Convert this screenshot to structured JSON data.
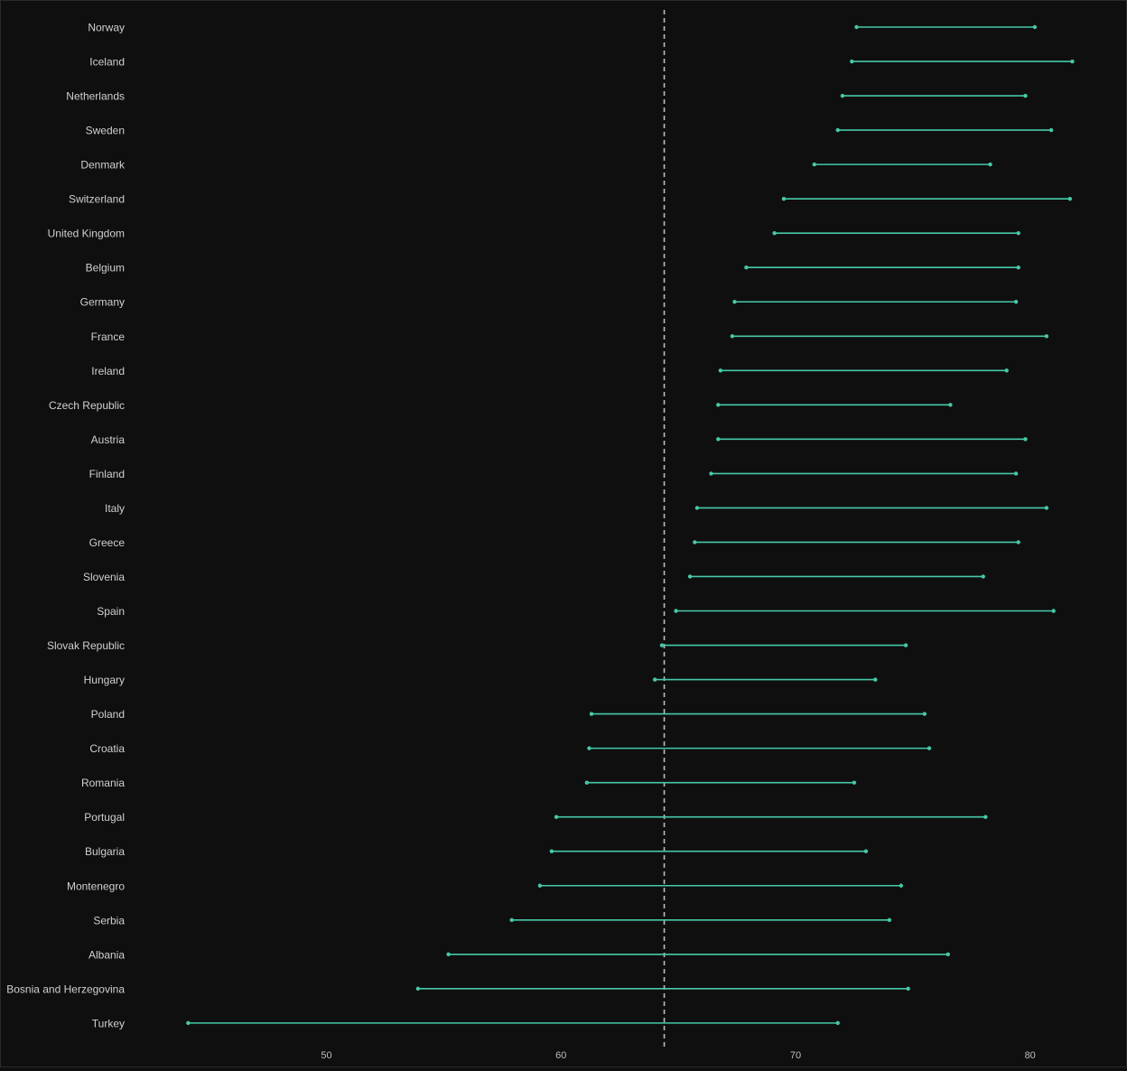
{
  "chart_data": {
    "type": "dumbbell",
    "title": "",
    "xlabel": "",
    "ylabel": "",
    "xlim": [
      41.7,
      83.4
    ],
    "xticks": [
      50,
      60,
      70,
      80
    ],
    "xtick_labels": [
      "50",
      "60",
      "70",
      "80"
    ],
    "reference_line": 64.4,
    "grid": false,
    "colors": {
      "segment": "#46c9a8",
      "point": "#46c9a8",
      "reference_line": "#bdbdbd",
      "label": "#d0d0d0",
      "tick_label": "#bdbdbd",
      "background": "#0f0f0f"
    },
    "rows": [
      {
        "label": "Norway",
        "start": 72.6,
        "end": 80.2
      },
      {
        "label": "Iceland",
        "start": 72.4,
        "end": 81.8
      },
      {
        "label": "Netherlands",
        "start": 72.0,
        "end": 79.8
      },
      {
        "label": "Sweden",
        "start": 71.8,
        "end": 80.9
      },
      {
        "label": "Denmark",
        "start": 70.8,
        "end": 78.3
      },
      {
        "label": "Switzerland",
        "start": 69.5,
        "end": 81.7
      },
      {
        "label": "United Kingdom",
        "start": 69.1,
        "end": 79.5
      },
      {
        "label": "Belgium",
        "start": 67.9,
        "end": 79.5
      },
      {
        "label": "Germany",
        "start": 67.4,
        "end": 79.4
      },
      {
        "label": "France",
        "start": 67.3,
        "end": 80.7
      },
      {
        "label": "Ireland",
        "start": 66.8,
        "end": 79.0
      },
      {
        "label": "Czech Republic",
        "start": 66.7,
        "end": 76.6
      },
      {
        "label": "Austria",
        "start": 66.7,
        "end": 79.8
      },
      {
        "label": "Finland",
        "start": 66.4,
        "end": 79.4
      },
      {
        "label": "Italy",
        "start": 65.8,
        "end": 80.7
      },
      {
        "label": "Greece",
        "start": 65.7,
        "end": 79.5
      },
      {
        "label": "Slovenia",
        "start": 65.5,
        "end": 78.0
      },
      {
        "label": "Spain",
        "start": 64.9,
        "end": 81.0
      },
      {
        "label": "Slovak Republic",
        "start": 64.3,
        "end": 74.7
      },
      {
        "label": "Hungary",
        "start": 64.0,
        "end": 73.4
      },
      {
        "label": "Poland",
        "start": 61.3,
        "end": 75.5
      },
      {
        "label": "Croatia",
        "start": 61.2,
        "end": 75.7
      },
      {
        "label": "Romania",
        "start": 61.1,
        "end": 72.5
      },
      {
        "label": "Portugal",
        "start": 59.8,
        "end": 78.1
      },
      {
        "label": "Bulgaria",
        "start": 59.6,
        "end": 73.0
      },
      {
        "label": "Montenegro",
        "start": 59.1,
        "end": 74.5
      },
      {
        "label": "Serbia",
        "start": 57.9,
        "end": 74.0
      },
      {
        "label": "Albania",
        "start": 55.2,
        "end": 76.5
      },
      {
        "label": "Bosnia and Herzegovina",
        "start": 53.9,
        "end": 74.8
      },
      {
        "label": "Turkey",
        "start": 44.1,
        "end": 71.8
      }
    ]
  }
}
